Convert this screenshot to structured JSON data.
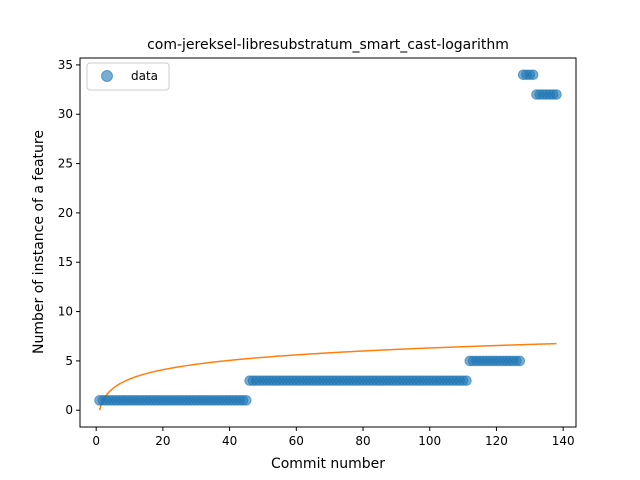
{
  "chart_data": {
    "type": "scatter",
    "title": "com-jereksel-libresubstratum_smart_cast-logarithm",
    "xlabel": "Commit number",
    "ylabel": "Number of instance of a feature",
    "xlim": [
      -4.85,
      143.85
    ],
    "ylim": [
      -1.7,
      35.7
    ],
    "xticks": [
      0,
      20,
      40,
      60,
      80,
      100,
      120,
      140
    ],
    "yticks": [
      0,
      5,
      10,
      15,
      20,
      25,
      30,
      35
    ],
    "grid": false,
    "legend_position": "top-left",
    "legend": [
      "data"
    ],
    "series": [
      {
        "name": "data",
        "kind": "scatter",
        "color": "#1f77b4",
        "segments": [
          {
            "x_start": 1,
            "x_end": 45,
            "y": 1
          },
          {
            "x_start": 46,
            "x_end": 111,
            "y": 3
          },
          {
            "x_start": 112,
            "x_end": 127,
            "y": 5
          },
          {
            "x_start": 128,
            "x_end": 131,
            "y": 34
          },
          {
            "x_start": 132,
            "x_end": 138,
            "y": 32
          }
        ]
      },
      {
        "kind": "line",
        "color": "#ff7f0e",
        "fit": {
          "function": "logarithmic",
          "a": 1.37,
          "b": 0.0,
          "x_start": 1,
          "x_end": 138
        }
      }
    ]
  }
}
